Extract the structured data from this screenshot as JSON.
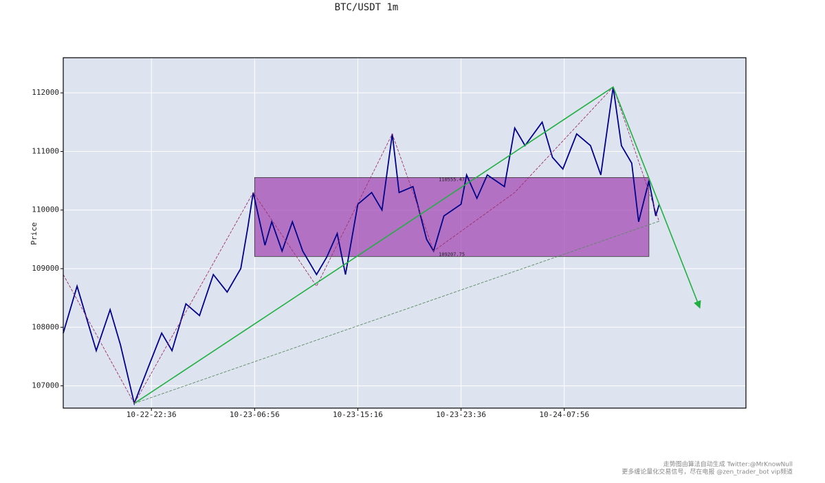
{
  "chart_data": {
    "type": "line",
    "title": "BTC/USDT 1m",
    "ylabel": "Price",
    "xlim": [
      "10-22-15:29",
      "10-24-22:36"
    ],
    "xticks": [
      "10-22-22:36",
      "10-23-06:56",
      "10-23-15:16",
      "10-23-23:36",
      "10-24-07:56"
    ],
    "ylim": [
      106620,
      112600
    ],
    "yticks": [
      107000,
      108000,
      109000,
      110000,
      111000,
      112000
    ],
    "grid": true,
    "color": "#00008b",
    "x": [
      "10-22-15:29",
      "10-22-16:36",
      "10-22-18:09",
      "10-22-19:16",
      "10-22-20:06",
      "10-22-21:13",
      "10-22-22:19",
      "10-22-23:26",
      "10-23-00:16",
      "10-23-01:23",
      "10-23-02:29",
      "10-23-03:36",
      "10-23-04:43",
      "10-23-05:49",
      "10-23-06:23",
      "10-23-06:49",
      "10-23-07:46",
      "10-23-08:19",
      "10-23-09:09",
      "10-23-09:59",
      "10-23-10:49",
      "10-23-11:56",
      "10-23-12:46",
      "10-23-13:36",
      "10-23-14:16",
      "10-23-15:16",
      "10-23-16:23",
      "10-23-17:13",
      "10-23-18:03",
      "10-23-18:36",
      "10-23-19:43",
      "10-23-20:49",
      "10-23-21:23",
      "10-23-22:13",
      "10-23-23:36",
      "10-24-00:03",
      "10-24-00:53",
      "10-24-01:43",
      "10-24-03:06",
      "10-24-03:56",
      "10-24-04:46",
      "10-24-06:09",
      "10-24-06:59",
      "10-24-07:49",
      "10-24-08:56",
      "10-24-10:03",
      "10-24-10:53",
      "10-24-11:53",
      "10-24-12:33",
      "10-24-13:23",
      "10-24-13:56",
      "10-24-14:46",
      "10-24-15:19",
      "10-24-15:36"
    ],
    "values": [
      107900,
      108700,
      107600,
      108300,
      107700,
      106700,
      107300,
      107900,
      107600,
      108400,
      108200,
      108900,
      108600,
      109000,
      109700,
      110300,
      109400,
      109800,
      109300,
      109800,
      109300,
      108900,
      109200,
      109600,
      108900,
      110100,
      110300,
      110000,
      111300,
      110300,
      110400,
      109500,
      109300,
      109900,
      110100,
      110600,
      110200,
      110600,
      110400,
      111400,
      111100,
      111500,
      110900,
      110700,
      111300,
      111100,
      110600,
      112100,
      111100,
      110800,
      109800,
      110500,
      109900,
      110100
    ],
    "box": {
      "x": [
        "10-23-06:56",
        "10-24-14:46"
      ],
      "top": 110555.47,
      "bottom": 109207.75,
      "color": "#a040b0"
    },
    "lines": [
      {
        "x": [
          "10-22-15:29",
          "10-22-21:13",
          "10-23-06:49",
          "10-23-11:56",
          "10-23-18:03",
          "10-23-21:23",
          "10-24-03:56",
          "10-24-11:53",
          "10-24-15:36"
        ],
        "values": [
          108900,
          106700,
          110300,
          108700,
          111300,
          109300,
          110300,
          112100,
          109800
        ],
        "color": "#a0306a",
        "style": "dashed"
      },
      {
        "x": [
          "10-22-21:13",
          "10-24-11:53",
          "10-24-18:53"
        ],
        "values": [
          106700,
          112100,
          108330
        ],
        "color": "#1fb040",
        "style": "arrow"
      },
      {
        "x": [
          "10-22-21:13",
          "10-24-15:36"
        ],
        "values": [
          106700,
          109810
        ],
        "color": "#5a8a60",
        "style": "dashed"
      }
    ],
    "footer": [
      "走势图由算法自动生成  Twitter:@MrKnowNull",
      "更多缠论量化交易信号，尽在电报 @zen_trader_bot vip频道"
    ]
  }
}
